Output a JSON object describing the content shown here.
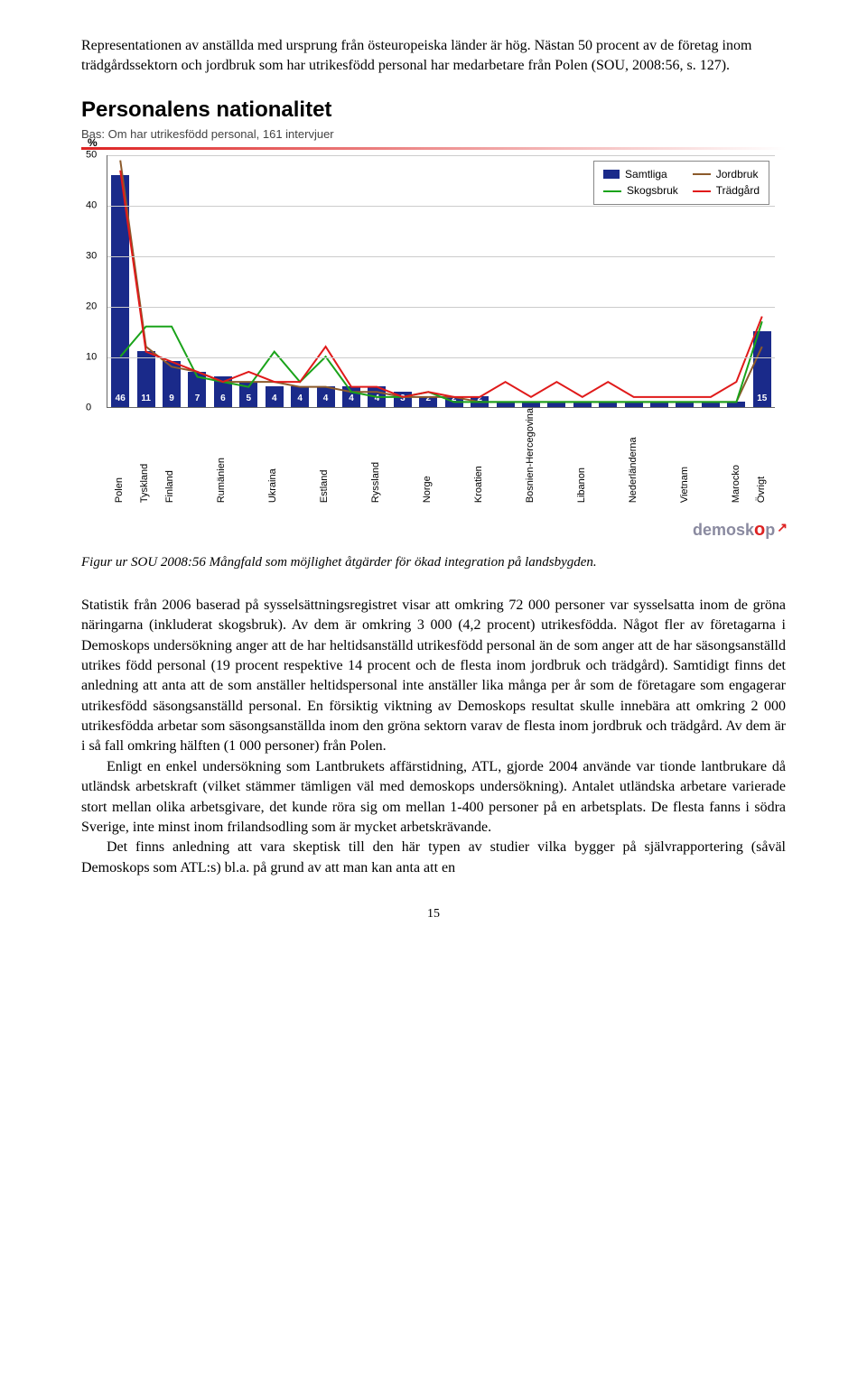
{
  "intro": "Representationen av anställda med ursprung från östeuropeiska länder är hög. Nästan 50 procent av de företag inom trädgårdssektorn och jordbruk som har utrikesfödd personal har medarbetare från Polen (SOU, 2008:56, s. 127).",
  "chart": {
    "title": "Personalens nationalitet",
    "subtitle": "Bas: Om har utrikesfödd personal, 161 intervjuer",
    "pct_symbol": "%",
    "ylim": [
      0,
      50
    ],
    "ytick_step": 10,
    "yticks": [
      "0",
      "10",
      "20",
      "30",
      "40",
      "50"
    ],
    "categories": [
      "Polen",
      "Tyskland",
      "Finland",
      "",
      "Rumänien",
      "",
      "Ukraina",
      "",
      "Estland",
      "",
      "Ryssland",
      "",
      "Norge",
      "",
      "Kroatien",
      "",
      "Bosnien-Hercegovina",
      "",
      "Libanon",
      "",
      "Nederländerna",
      "",
      "Vietnam",
      "",
      "Marocko",
      "Övrigt"
    ],
    "bar_values": [
      46,
      11,
      9,
      7,
      6,
      5,
      4,
      4,
      4,
      4,
      4,
      3,
      2,
      2,
      2,
      1,
      1,
      1,
      1,
      1,
      1,
      1,
      1,
      1,
      1,
      15
    ],
    "bar_color": "#1a2a8a",
    "series": {
      "jordbruk": {
        "color": "#8b5a2b",
        "values": [
          49,
          12,
          8,
          7,
          5,
          5,
          5,
          4,
          4,
          3,
          3,
          2,
          2,
          2,
          1,
          1,
          1,
          1,
          1,
          1,
          1,
          1,
          1,
          1,
          1,
          12
        ]
      },
      "skogsbruk": {
        "color": "#1aa31a",
        "values": [
          10,
          16,
          16,
          6,
          5,
          4,
          11,
          5,
          10,
          3,
          2,
          2,
          3,
          1,
          1,
          1,
          1,
          1,
          1,
          1,
          1,
          1,
          1,
          1,
          1,
          17
        ]
      },
      "tradgard": {
        "color": "#e01a1a",
        "values": [
          47,
          11,
          9,
          7,
          5,
          7,
          5,
          5,
          12,
          4,
          4,
          2,
          3,
          2,
          2,
          5,
          2,
          5,
          2,
          5,
          2,
          2,
          2,
          2,
          5,
          18
        ]
      }
    },
    "legend": {
      "samtliga": "Samtliga",
      "jordbruk": "Jordbruk",
      "skogsbruk": "Skogsbruk",
      "tradgard": "Trädgård"
    },
    "background_color": "#ffffff",
    "grid_color": "#cccccc",
    "axis_fontsize": 11,
    "title_fontsize": 24
  },
  "brand": {
    "text": "demosk",
    "accent": "o",
    "tail": "p"
  },
  "caption": "Figur ur SOU 2008:56 Mångfald som möjlighet åtgärder för ökad integration på landsbygden.",
  "para1": "Statistik från 2006 baserad på sysselsättningsregistret visar att omkring 72 000 personer var sysselsatta inom de gröna näringarna (inkluderat skogsbruk). Av dem är omkring 3 000 (4,2 procent) utrikesfödda. Något fler av företagarna i Demoskops undersökning anger att de har heltidsanställd utrikesfödd personal än de som anger att de har säsongsanställd utrikes född personal (19 procent respektive 14 procent och de flesta inom jordbruk och trädgård). Samtidigt finns det anledning att anta att de som anställer heltidspersonal inte anställer lika många per år som de företagare som engagerar utrikesfödd säsongsanställd personal. En försiktig viktning av Demoskops resultat skulle innebära att omkring 2 000 utrikesfödda arbetar som säsongsanställda inom den gröna sektorn varav de flesta inom jordbruk och trädgård. Av dem är i så fall omkring hälften (1 000 personer) från Polen.",
  "para2": "Enligt en enkel undersökning som Lantbrukets affärstidning, ATL, gjorde 2004 använde var tionde lantbrukare då utländsk arbetskraft (vilket stämmer tämligen väl med demoskops undersökning). Antalet utländska arbetare varierade stort mellan olika arbetsgivare, det kunde röra sig om mellan 1-400 personer på en arbetsplats. De flesta fanns i södra Sverige, inte minst inom frilandsodling som är mycket arbetskrävande.",
  "para3": "Det finns anledning att vara skeptisk till den här typen av studier vilka bygger på självrapportering (såväl Demoskops som ATL:s) bl.a. på grund av att man kan anta att en",
  "page": "15"
}
